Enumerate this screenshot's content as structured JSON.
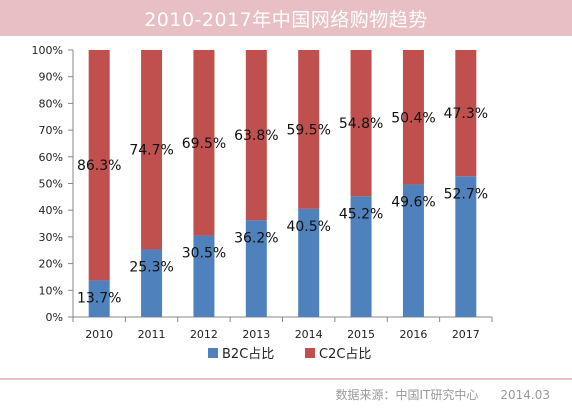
{
  "title": "2010-2017年中国网络购物趋势",
  "footer": {
    "source": "数据来源：中国IT研究中心",
    "date": "2014.03"
  },
  "colors": {
    "b2c": "#4f81bd",
    "c2c": "#c0504d",
    "title_bg": "#e8bfc2"
  },
  "chart_data": {
    "type": "bar",
    "stacked": true,
    "categories": [
      "2010",
      "2011",
      "2012",
      "2013",
      "2014",
      "2015",
      "2016",
      "2017"
    ],
    "series": [
      {
        "name": "B2C占比",
        "values": [
          13.7,
          25.3,
          30.5,
          36.2,
          40.5,
          45.2,
          49.6,
          52.7
        ],
        "labels": [
          "13.7%",
          "25.3%",
          "30.5%",
          "36.2%",
          "40.5%",
          "45.2%",
          "49.6%",
          "52.7%"
        ]
      },
      {
        "name": "C2C占比",
        "values": [
          86.3,
          74.7,
          69.5,
          63.8,
          59.5,
          54.8,
          50.4,
          47.3
        ],
        "labels": [
          "86.3%",
          "74.7%",
          "69.5%",
          "63.8%",
          "59.5%",
          "54.8%",
          "50.4%",
          "47.3%"
        ]
      }
    ],
    "yticks": [
      "0%",
      "10%",
      "20%",
      "30%",
      "40%",
      "50%",
      "60%",
      "70%",
      "80%",
      "90%",
      "100%"
    ],
    "ylim": [
      0,
      100
    ],
    "legend_position": "bottom",
    "grid": false
  }
}
